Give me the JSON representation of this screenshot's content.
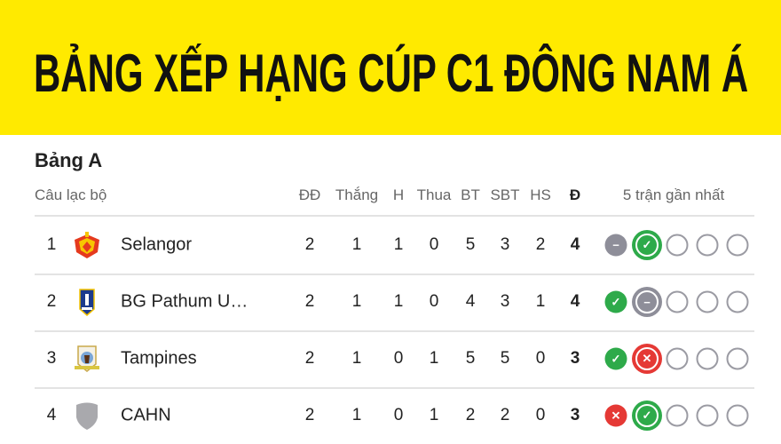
{
  "title": "BẢNG XẾP HẠNG CÚP C1 ĐÔNG NAM Á",
  "group": "Bảng A",
  "headers": {
    "club": "Câu lạc bộ",
    "played": "ĐĐ",
    "won": "Thắng",
    "drawn": "H",
    "lost": "Thua",
    "gf": "BT",
    "ga": "SBT",
    "gd": "HS",
    "pts": "Đ",
    "form": "5 trận gần nhất"
  },
  "colors": {
    "banner": "#FFEA00",
    "win": "#2EAA4A",
    "draw": "#8E8E99",
    "loss": "#E53935",
    "empty": "#9B9BA3"
  },
  "rows": [
    {
      "rank": "1",
      "name": "Selangor",
      "logo": "selangor-crest",
      "played": "2",
      "won": "1",
      "drawn": "1",
      "lost": "0",
      "gf": "5",
      "ga": "3",
      "gd": "2",
      "pts": "4",
      "form": [
        "D",
        "W",
        "",
        "",
        ""
      ]
    },
    {
      "rank": "2",
      "name": "BG Pathum U…",
      "logo": "bg-pathum-crest",
      "played": "2",
      "won": "1",
      "drawn": "1",
      "lost": "0",
      "gf": "4",
      "ga": "3",
      "gd": "1",
      "pts": "4",
      "form": [
        "W",
        "D",
        "",
        "",
        ""
      ]
    },
    {
      "rank": "3",
      "name": "Tampines",
      "logo": "tampines-crest",
      "played": "2",
      "won": "1",
      "drawn": "0",
      "lost": "1",
      "gf": "5",
      "ga": "5",
      "gd": "0",
      "pts": "3",
      "form": [
        "W",
        "L",
        "",
        "",
        ""
      ]
    },
    {
      "rank": "4",
      "name": "CAHN",
      "logo": "placeholder-shield",
      "played": "2",
      "won": "1",
      "drawn": "0",
      "lost": "1",
      "gf": "2",
      "ga": "2",
      "gd": "0",
      "pts": "3",
      "form": [
        "L",
        "W",
        "",
        "",
        ""
      ]
    }
  ]
}
